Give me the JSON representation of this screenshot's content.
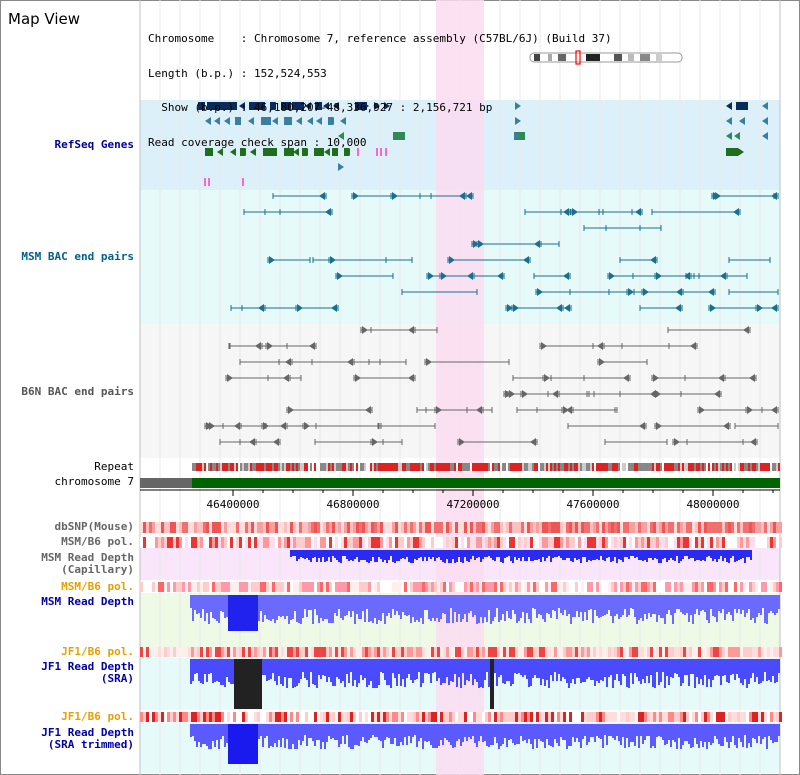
{
  "title": "Map View",
  "info": {
    "line1": "Chromosome    : Chromosome 7, reference assembly (C57BL/6J) (Build 37)",
    "line2": "Length (b.p.) : 152,524,553",
    "line3": "  Show (b.p.) : 46,180,207-48,336,927 : 2,156,721 bp",
    "line4": "Read coverage check span : 10,000"
  },
  "tracks": {
    "refseq": "RefSeq Genes",
    "msm_bac": "MSM BAC end pairs",
    "b6n_bac": "B6N BAC end pairs",
    "repeat": "Repeat",
    "chromosome": "chromosome 7",
    "dbsnp": "dbSNP(Mouse)",
    "msm_b6_pol_1": "MSM/B6 pol.",
    "msm_depth_cap": "MSM Read Depth\n(Capillary)",
    "msm_b6_pol_2": "MSM/B6 pol.",
    "msm_depth": "MSM Read Depth",
    "jf1_b6_pol_1": "JF1/B6 pol.",
    "jf1_depth_sra": "JF1 Read Depth\n(SRA)",
    "jf1_b6_pol_2": "JF1/B6 pol.",
    "jf1_depth_trim": "JF1 Read Depth\n(SRA trimmed)"
  },
  "axis_ticks": [
    "46400000",
    "46800000",
    "47200000",
    "47600000",
    "48000000"
  ],
  "colors": {
    "refseq_bg": "#dcf0fa",
    "msm_bac_bg": "#e6fafa",
    "b6n_bac_bg": "#f5f5f5",
    "highlight": "#fadcf0",
    "refseq_label": "#000099",
    "msm_bac_label": "#005f8a",
    "b6n_label": "#444444",
    "pol_label": "#e8a000",
    "depth_label": "#0000aa",
    "chromosome_green": "#006400"
  }
}
